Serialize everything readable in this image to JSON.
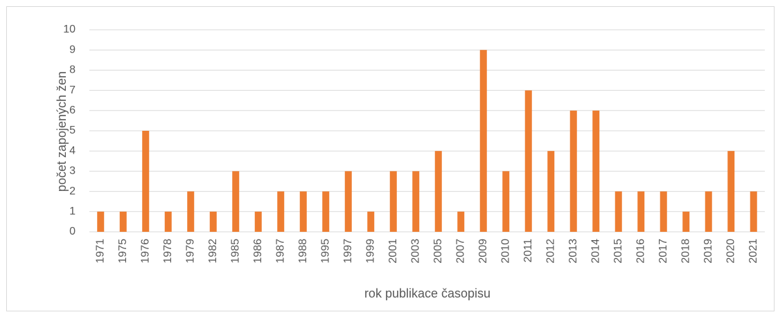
{
  "chart_data": {
    "type": "bar",
    "xlabel": "rok publikace časopisu",
    "ylabel": "počet zapojených žen",
    "categories": [
      "1971",
      "1975",
      "1976",
      "1978",
      "1979",
      "1982",
      "1985",
      "1986",
      "1987",
      "1988",
      "1995",
      "1997",
      "1999",
      "2001",
      "2003",
      "2005",
      "2007",
      "2009",
      "2010",
      "2011",
      "2012",
      "2013",
      "2014",
      "2015",
      "2016",
      "2017",
      "2018",
      "2019",
      "2020",
      "2021"
    ],
    "values": [
      1,
      1,
      5,
      1,
      2,
      1,
      3,
      1,
      2,
      2,
      2,
      3,
      1,
      3,
      3,
      4,
      1,
      9,
      3,
      7,
      4,
      6,
      6,
      2,
      2,
      2,
      1,
      2,
      4,
      2
    ],
    "color": "#ed7d31",
    "ylim": [
      0,
      10
    ],
    "yticks": [
      0,
      1,
      2,
      3,
      4,
      5,
      6,
      7,
      8,
      9,
      10
    ],
    "grid": true
  }
}
